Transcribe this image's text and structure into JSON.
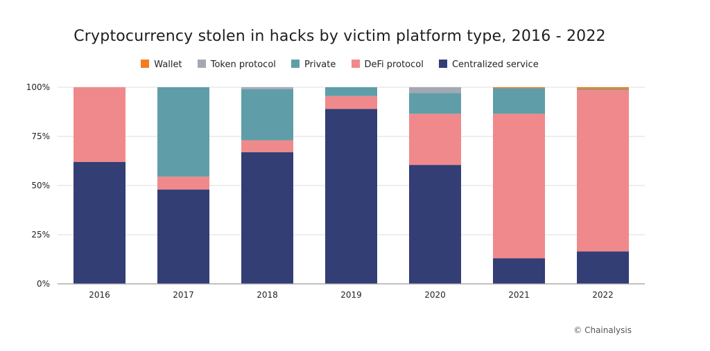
{
  "chart_data": {
    "type": "bar",
    "stacked": true,
    "title": "Cryptocurrency stolen in hacks by victim platform type, 2016 - 2022",
    "xlabel": "",
    "ylabel": "",
    "ylim": [
      0,
      100
    ],
    "yticks": [
      "0%",
      "25%",
      "50%",
      "75%",
      "100%"
    ],
    "grid": true,
    "legend_position": "top",
    "categories": [
      "2016",
      "2017",
      "2018",
      "2019",
      "2020",
      "2021",
      "2022"
    ],
    "series": [
      {
        "name": "Centralized service",
        "color": "#323e74",
        "values": [
          62,
          48,
          67,
          89,
          60.5,
          13,
          16.5
        ]
      },
      {
        "name": "DeFi protocol",
        "color": "#f0898b",
        "values": [
          38,
          6.5,
          6,
          6.5,
          26,
          73.5,
          82
        ]
      },
      {
        "name": "Private",
        "color": "#5f9ea8",
        "values": [
          0,
          45.5,
          26,
          4.5,
          10.5,
          13,
          0.5
        ]
      },
      {
        "name": "Token protocol",
        "color": "#a4a8b5",
        "values": [
          0,
          0,
          1,
          0,
          3,
          0,
          0
        ]
      },
      {
        "name": "Wallet",
        "color": "#f47b20",
        "values": [
          0,
          0,
          0,
          0,
          0,
          0.5,
          1
        ]
      }
    ],
    "legend_order": [
      "Wallet",
      "Token protocol",
      "Private",
      "DeFi protocol",
      "Centralized service"
    ]
  },
  "credit": "© Chainalysis"
}
